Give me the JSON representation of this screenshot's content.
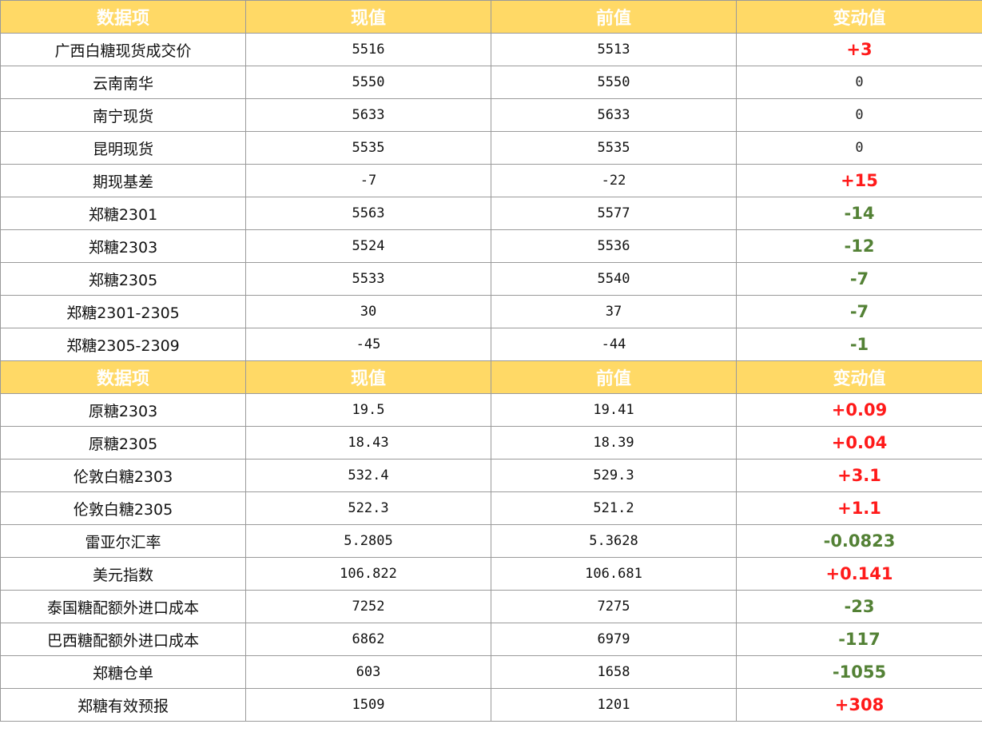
{
  "header": {
    "item": "数据项",
    "current": "现值",
    "previous": "前值",
    "change": "变动值"
  },
  "colors": {
    "header_bg": "#ffd966",
    "header_text": "#ffffff",
    "up": "#ff1a1a",
    "down": "#538135",
    "flat": "#222222"
  },
  "sections": [
    {
      "rows": [
        {
          "name": "广西白糖现货成交价",
          "current": "5516",
          "previous": "5513",
          "change": "+3",
          "trend": "up"
        },
        {
          "name": "云南南华",
          "current": "5550",
          "previous": "5550",
          "change": "0",
          "trend": "flat"
        },
        {
          "name": "南宁现货",
          "current": "5633",
          "previous": "5633",
          "change": "0",
          "trend": "flat"
        },
        {
          "name": "昆明现货",
          "current": "5535",
          "previous": "5535",
          "change": "0",
          "trend": "flat"
        },
        {
          "name": "期现基差",
          "current": "-7",
          "previous": "-22",
          "change": "+15",
          "trend": "up"
        },
        {
          "name": "郑糖2301",
          "current": "5563",
          "previous": "5577",
          "change": "-14",
          "trend": "down"
        },
        {
          "name": "郑糖2303",
          "current": "5524",
          "previous": "5536",
          "change": "-12",
          "trend": "down"
        },
        {
          "name": "郑糖2305",
          "current": "5533",
          "previous": "5540",
          "change": "-7",
          "trend": "down"
        },
        {
          "name": "郑糖2301-2305",
          "current": "30",
          "previous": "37",
          "change": "-7",
          "trend": "down"
        },
        {
          "name": "郑糖2305-2309",
          "current": "-45",
          "previous": "-44",
          "change": "-1",
          "trend": "down"
        }
      ]
    },
    {
      "rows": [
        {
          "name": "原糖2303",
          "current": "19.5",
          "previous": "19.41",
          "change": "+0.09",
          "trend": "up"
        },
        {
          "name": "原糖2305",
          "current": "18.43",
          "previous": "18.39",
          "change": "+0.04",
          "trend": "up"
        },
        {
          "name": "伦敦白糖2303",
          "current": "532.4",
          "previous": "529.3",
          "change": "+3.1",
          "trend": "up"
        },
        {
          "name": "伦敦白糖2305",
          "current": "522.3",
          "previous": "521.2",
          "change": "+1.1",
          "trend": "up"
        },
        {
          "name": "雷亚尔汇率",
          "current": "5.2805",
          "previous": "5.3628",
          "change": "-0.0823",
          "trend": "down"
        },
        {
          "name": "美元指数",
          "current": "106.822",
          "previous": "106.681",
          "change": "+0.141",
          "trend": "up"
        },
        {
          "name": "泰国糖配额外进口成本",
          "current": "7252",
          "previous": "7275",
          "change": "-23",
          "trend": "down"
        },
        {
          "name": "巴西糖配额外进口成本",
          "current": "6862",
          "previous": "6979",
          "change": "-117",
          "trend": "down"
        },
        {
          "name": "郑糖仓单",
          "current": "603",
          "previous": "1658",
          "change": "-1055",
          "trend": "down"
        },
        {
          "name": "郑糖有效预报",
          "current": "1509",
          "previous": "1201",
          "change": "+308",
          "trend": "up"
        }
      ]
    }
  ]
}
